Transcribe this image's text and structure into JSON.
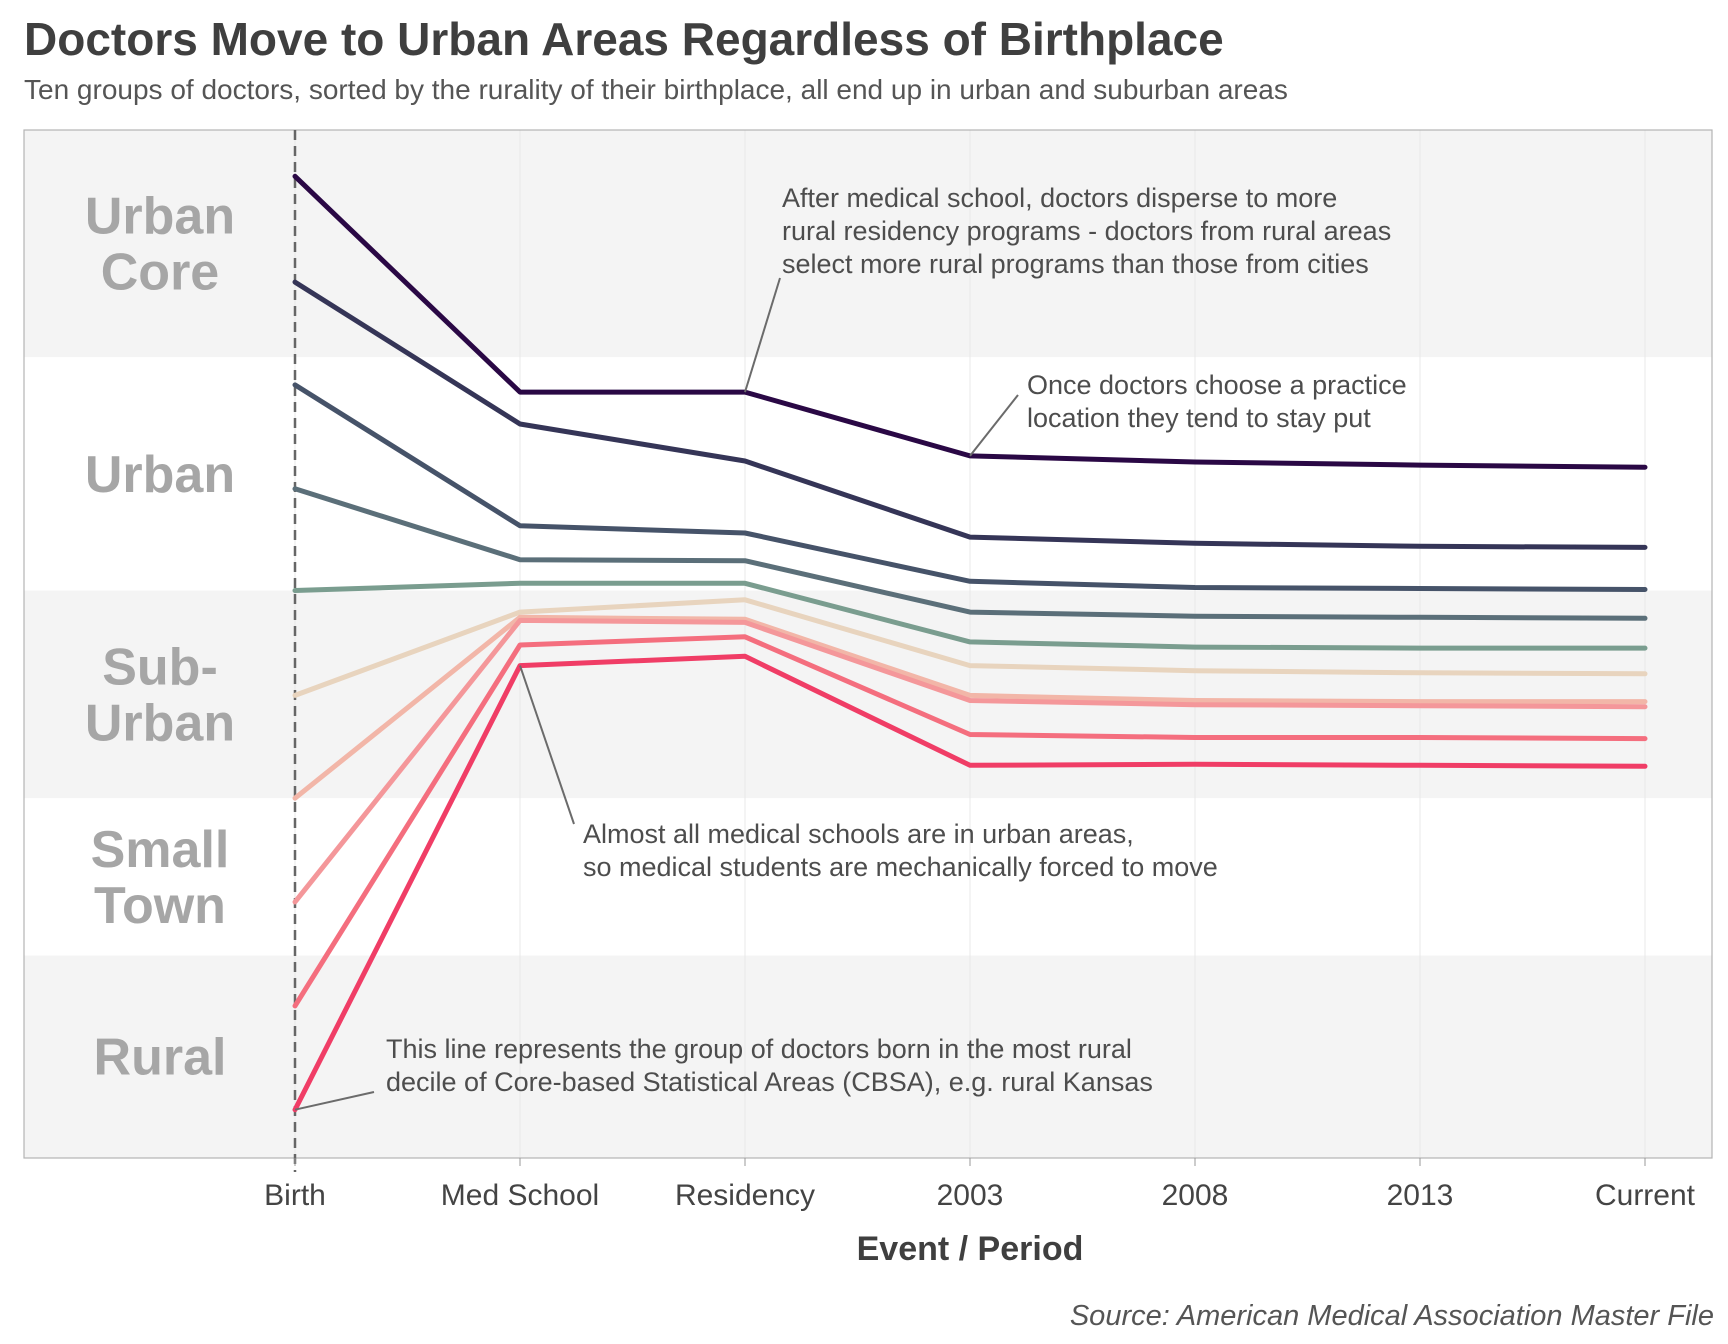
{
  "title": "Doctors Move to Urban Areas Regardless of Birthplace",
  "subtitle": "Ten groups of doctors, sorted by the rurality of their birthplace, all end up in urban and suburban areas",
  "source": "Source: American Medical Association Master File",
  "colors": {
    "band_shade": "#f4f4f4",
    "band_label": "#a6a6a6",
    "annotation_line": "#6b6b6b",
    "birth_line": "#666666"
  },
  "chart_data": {
    "type": "line",
    "title": "Doctors Move to Urban Areas Regardless of Birthplace",
    "xlabel": "Event / Period",
    "ylabel": "",
    "categories": [
      "Birth",
      "Med School",
      "Residency",
      "2003",
      "2008",
      "2013",
      "Current"
    ],
    "ylim": [
      0,
      10
    ],
    "y_note": "values are positions on the rurality scale (0 = most rural bottom of chart, 10 = top of chart)",
    "bands": [
      {
        "label": "Urban Core",
        "lines": [
          "Urban",
          "Core"
        ],
        "from": 7.79,
        "to": 10,
        "shaded": true
      },
      {
        "label": "Urban",
        "lines": [
          "Urban"
        ],
        "from": 5.52,
        "to": 7.79,
        "shaded": false
      },
      {
        "label": "Sub-Urban",
        "lines": [
          "Sub-",
          "Urban"
        ],
        "from": 3.5,
        "to": 5.52,
        "shaded": true
      },
      {
        "label": "Small Town",
        "lines": [
          "Small",
          "Town"
        ],
        "from": 1.97,
        "to": 3.5,
        "shaded": false
      },
      {
        "label": "Rural",
        "lines": [
          "Rural"
        ],
        "from": 0,
        "to": 1.97,
        "shaded": true
      }
    ],
    "series": [
      {
        "color": "#2a0845",
        "values": [
          9.55,
          7.45,
          7.45,
          6.83,
          6.77,
          6.74,
          6.72
        ]
      },
      {
        "color": "#353557",
        "values": [
          8.52,
          7.14,
          6.78,
          6.04,
          5.98,
          5.95,
          5.94
        ]
      },
      {
        "color": "#465369",
        "values": [
          7.52,
          6.15,
          6.08,
          5.61,
          5.55,
          5.54,
          5.53
        ]
      },
      {
        "color": "#5b6f79",
        "values": [
          6.51,
          5.82,
          5.81,
          5.31,
          5.27,
          5.26,
          5.25
        ]
      },
      {
        "color": "#7a9d8f",
        "values": [
          5.52,
          5.59,
          5.59,
          5.02,
          4.97,
          4.96,
          4.96
        ]
      },
      {
        "color": "#e8d4be",
        "values": [
          4.5,
          5.31,
          5.43,
          4.79,
          4.74,
          4.72,
          4.71
        ]
      },
      {
        "color": "#f2b6a8",
        "values": [
          3.5,
          5.26,
          5.24,
          4.5,
          4.45,
          4.44,
          4.44
        ]
      },
      {
        "color": "#f4979a",
        "values": [
          2.49,
          5.23,
          5.21,
          4.45,
          4.41,
          4.4,
          4.39
        ]
      },
      {
        "color": "#f46e7e",
        "values": [
          1.48,
          4.99,
          5.07,
          4.12,
          4.09,
          4.09,
          4.08
        ]
      },
      {
        "color": "#f03d66",
        "values": [
          0.47,
          4.79,
          4.88,
          3.82,
          3.83,
          3.82,
          3.81
        ]
      }
    ],
    "annotations": [
      {
        "lines": [
          "After medical school, doctors disperse to more",
          "rural residency programs - doctors from rural areas",
          "select more rural programs than those from cities"
        ],
        "point": {
          "x": "Residency",
          "y": 7.45
        }
      },
      {
        "lines": [
          "Once doctors choose a practice",
          "location they tend to stay put"
        ],
        "point": {
          "x": "2003",
          "y": 6.83
        }
      },
      {
        "lines": [
          "Almost all medical schools are in urban areas,",
          "so medical students are mechanically forced to move"
        ],
        "point": {
          "x": "Med School",
          "y": 4.79
        }
      },
      {
        "lines": [
          "This line represents the group of doctors born in the most rural",
          "decile of Core-based Statistical Areas (CBSA), e.g. rural Kansas"
        ],
        "point": {
          "x": "Birth",
          "y": 0.47
        }
      }
    ]
  }
}
